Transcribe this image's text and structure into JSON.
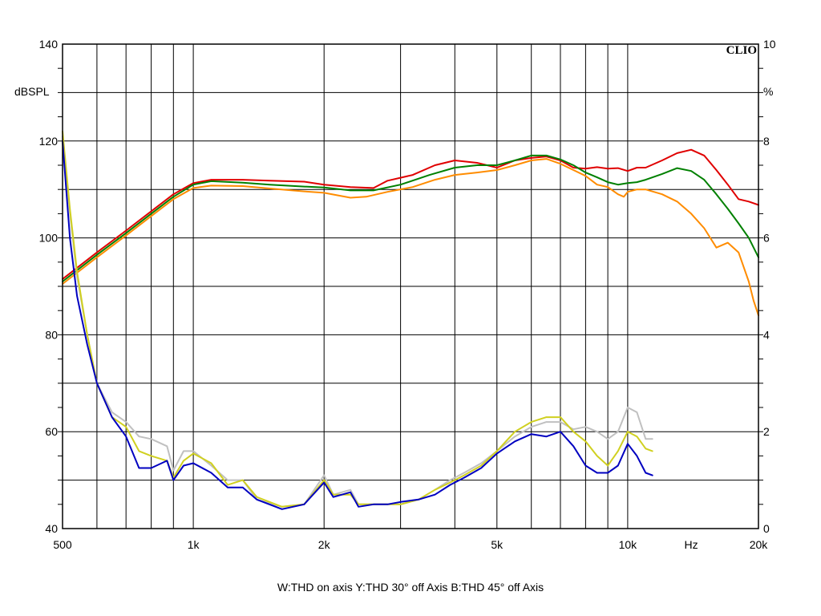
{
  "chart_data": {
    "type": "line",
    "brand": "CLIO",
    "x_scale": "log",
    "xlim": [
      500,
      20000
    ],
    "x_ticks": [
      {
        "value": 500,
        "label": "500"
      },
      {
        "value": 1000,
        "label": "1k"
      },
      {
        "value": 2000,
        "label": "2k"
      },
      {
        "value": 5000,
        "label": "5k"
      },
      {
        "value": 10000,
        "label": "10k"
      },
      {
        "value": 14000,
        "label": "Hz"
      },
      {
        "value": 20000,
        "label": "20k"
      }
    ],
    "x_gridlines": [
      500,
      600,
      700,
      800,
      900,
      1000,
      2000,
      3000,
      4000,
      5000,
      6000,
      7000,
      8000,
      9000,
      10000,
      20000
    ],
    "ylim_left": [
      40,
      140
    ],
    "ylabel_left": "dBSPL",
    "y_ticks_left": [
      "40",
      "60",
      "80",
      "100",
      "120",
      "140"
    ],
    "ylim_right": [
      0,
      10
    ],
    "ylabel_right": "%",
    "y_ticks_right": [
      "0",
      "2",
      "4",
      "6",
      "8",
      "10"
    ],
    "grid": true,
    "legend_text": "W:THD on axis   Y:THD 30° off Axis   B:THD 45° off Axis",
    "series": [
      {
        "axis": "left",
        "color": "#e00000",
        "points": [
          [
            500,
            91.5
          ],
          [
            600,
            97
          ],
          [
            700,
            101.5
          ],
          [
            800,
            105.5
          ],
          [
            900,
            109
          ],
          [
            1000,
            111.3
          ],
          [
            1100,
            112
          ],
          [
            1300,
            112
          ],
          [
            1500,
            111.8
          ],
          [
            1800,
            111.6
          ],
          [
            2000,
            111
          ],
          [
            2300,
            110.5
          ],
          [
            2600,
            110.3
          ],
          [
            2800,
            111.8
          ],
          [
            3200,
            113
          ],
          [
            3600,
            115
          ],
          [
            4000,
            116
          ],
          [
            4500,
            115.5
          ],
          [
            5000,
            114.5
          ],
          [
            5500,
            116
          ],
          [
            6000,
            116.5
          ],
          [
            6500,
            116.8
          ],
          [
            7000,
            116
          ],
          [
            7500,
            114.5
          ],
          [
            8000,
            114.3
          ],
          [
            8500,
            114.6
          ],
          [
            9000,
            114.3
          ],
          [
            9500,
            114.4
          ],
          [
            10000,
            113.8
          ],
          [
            10500,
            114.5
          ],
          [
            11000,
            114.5
          ],
          [
            12000,
            116
          ],
          [
            13000,
            117.5
          ],
          [
            14000,
            118.2
          ],
          [
            15000,
            117
          ],
          [
            16000,
            114
          ],
          [
            17000,
            111
          ],
          [
            18000,
            108
          ],
          [
            19000,
            107.5
          ],
          [
            20000,
            106.8
          ]
        ]
      },
      {
        "axis": "left",
        "color": "#008000",
        "points": [
          [
            500,
            91
          ],
          [
            600,
            96.5
          ],
          [
            700,
            101
          ],
          [
            800,
            105
          ],
          [
            900,
            108.5
          ],
          [
            1000,
            111
          ],
          [
            1100,
            111.7
          ],
          [
            1300,
            111.4
          ],
          [
            1500,
            111
          ],
          [
            1800,
            110.6
          ],
          [
            2000,
            110.4
          ],
          [
            2300,
            109.8
          ],
          [
            2600,
            109.8
          ],
          [
            3000,
            111
          ],
          [
            3500,
            113
          ],
          [
            4000,
            114.5
          ],
          [
            4500,
            115
          ],
          [
            5000,
            115
          ],
          [
            5500,
            116
          ],
          [
            6000,
            117
          ],
          [
            6500,
            117
          ],
          [
            7000,
            116.2
          ],
          [
            7500,
            115
          ],
          [
            8000,
            113.5
          ],
          [
            8500,
            112.5
          ],
          [
            9000,
            111.5
          ],
          [
            9500,
            111
          ],
          [
            10000,
            111.3
          ],
          [
            10500,
            111.5
          ],
          [
            11000,
            112
          ],
          [
            12000,
            113.2
          ],
          [
            13000,
            114.4
          ],
          [
            14000,
            113.8
          ],
          [
            15000,
            112
          ],
          [
            16000,
            109
          ],
          [
            17000,
            106
          ],
          [
            18000,
            103
          ],
          [
            19000,
            100
          ],
          [
            20000,
            96
          ]
        ]
      },
      {
        "axis": "left",
        "color": "#ff8c00",
        "points": [
          [
            500,
            90.5
          ],
          [
            600,
            96
          ],
          [
            700,
            100.5
          ],
          [
            800,
            104.5
          ],
          [
            900,
            108
          ],
          [
            1000,
            110.3
          ],
          [
            1100,
            110.8
          ],
          [
            1300,
            110.7
          ],
          [
            1500,
            110.2
          ],
          [
            1800,
            109.6
          ],
          [
            2000,
            109.3
          ],
          [
            2300,
            108.3
          ],
          [
            2500,
            108.5
          ],
          [
            2800,
            109.5
          ],
          [
            3200,
            110.5
          ],
          [
            3600,
            112
          ],
          [
            4000,
            113
          ],
          [
            4500,
            113.5
          ],
          [
            5000,
            114
          ],
          [
            5500,
            115
          ],
          [
            6000,
            116
          ],
          [
            6500,
            116.3
          ],
          [
            7000,
            115.3
          ],
          [
            7500,
            114
          ],
          [
            8000,
            112.8
          ],
          [
            8500,
            111
          ],
          [
            9000,
            110.5
          ],
          [
            9500,
            109
          ],
          [
            9800,
            108.5
          ],
          [
            10000,
            109.5
          ],
          [
            10500,
            110
          ],
          [
            11000,
            110
          ],
          [
            12000,
            109
          ],
          [
            13000,
            107.5
          ],
          [
            14000,
            105
          ],
          [
            15000,
            102
          ],
          [
            16000,
            98
          ],
          [
            17000,
            99
          ],
          [
            18000,
            97
          ],
          [
            19000,
            91
          ],
          [
            19500,
            87
          ],
          [
            20000,
            84
          ]
        ]
      },
      {
        "axis": "right",
        "color": "#c0c0c0",
        "points": [
          [
            500,
            8.1
          ],
          [
            520,
            6.5
          ],
          [
            540,
            5.2
          ],
          [
            570,
            4
          ],
          [
            600,
            3
          ],
          [
            650,
            2.4
          ],
          [
            700,
            2.2
          ],
          [
            750,
            1.9
          ],
          [
            800,
            1.85
          ],
          [
            870,
            1.7
          ],
          [
            900,
            1.2
          ],
          [
            950,
            1.6
          ],
          [
            1000,
            1.6
          ],
          [
            1100,
            1.3
          ],
          [
            1200,
            1.0
          ],
          [
            1300,
            1.0
          ],
          [
            1400,
            0.6
          ],
          [
            1600,
            0.45
          ],
          [
            1800,
            0.5
          ],
          [
            2000,
            1.1
          ],
          [
            2100,
            0.7
          ],
          [
            2300,
            0.8
          ],
          [
            2400,
            0.5
          ],
          [
            2600,
            0.5
          ],
          [
            2800,
            0.5
          ],
          [
            3000,
            0.5
          ],
          [
            3300,
            0.6
          ],
          [
            3600,
            0.8
          ],
          [
            3900,
            1.0
          ],
          [
            4200,
            1.15
          ],
          [
            4600,
            1.35
          ],
          [
            5000,
            1.6
          ],
          [
            5500,
            1.9
          ],
          [
            6000,
            2.1
          ],
          [
            6500,
            2.2
          ],
          [
            7000,
            2.2
          ],
          [
            7500,
            2.05
          ],
          [
            8000,
            2.1
          ],
          [
            8500,
            2.0
          ],
          [
            9000,
            1.85
          ],
          [
            9500,
            2.0
          ],
          [
            10000,
            2.5
          ],
          [
            10500,
            2.4
          ],
          [
            11000,
            1.85
          ],
          [
            11400,
            1.85
          ]
        ]
      },
      {
        "axis": "right",
        "color": "#d0d020",
        "points": [
          [
            500,
            8.2
          ],
          [
            520,
            6.6
          ],
          [
            540,
            5.3
          ],
          [
            570,
            4
          ],
          [
            600,
            3
          ],
          [
            650,
            2.3
          ],
          [
            700,
            2.1
          ],
          [
            750,
            1.6
          ],
          [
            800,
            1.5
          ],
          [
            870,
            1.4
          ],
          [
            900,
            1.05
          ],
          [
            950,
            1.4
          ],
          [
            1000,
            1.55
          ],
          [
            1100,
            1.35
          ],
          [
            1200,
            0.9
          ],
          [
            1300,
            1.0
          ],
          [
            1400,
            0.65
          ],
          [
            1600,
            0.45
          ],
          [
            1800,
            0.5
          ],
          [
            2000,
            1.0
          ],
          [
            2100,
            0.7
          ],
          [
            2300,
            0.7
          ],
          [
            2400,
            0.5
          ],
          [
            2600,
            0.5
          ],
          [
            2800,
            0.5
          ],
          [
            3000,
            0.5
          ],
          [
            3300,
            0.6
          ],
          [
            3600,
            0.8
          ],
          [
            3900,
            0.95
          ],
          [
            4200,
            1.1
          ],
          [
            4600,
            1.3
          ],
          [
            5000,
            1.6
          ],
          [
            5500,
            2.0
          ],
          [
            6000,
            2.2
          ],
          [
            6500,
            2.3
          ],
          [
            7000,
            2.3
          ],
          [
            7500,
            2.0
          ],
          [
            8000,
            1.8
          ],
          [
            8500,
            1.5
          ],
          [
            9000,
            1.3
          ],
          [
            9500,
            1.6
          ],
          [
            10000,
            2.0
          ],
          [
            10500,
            1.9
          ],
          [
            11000,
            1.65
          ],
          [
            11400,
            1.6
          ]
        ]
      },
      {
        "axis": "right",
        "color": "#0000c0",
        "points": [
          [
            500,
            8.0
          ],
          [
            520,
            6.0
          ],
          [
            540,
            4.8
          ],
          [
            570,
            3.8
          ],
          [
            600,
            3
          ],
          [
            650,
            2.3
          ],
          [
            700,
            1.9
          ],
          [
            750,
            1.25
          ],
          [
            800,
            1.25
          ],
          [
            870,
            1.4
          ],
          [
            900,
            1.0
          ],
          [
            950,
            1.3
          ],
          [
            1000,
            1.35
          ],
          [
            1100,
            1.15
          ],
          [
            1200,
            0.85
          ],
          [
            1300,
            0.85
          ],
          [
            1400,
            0.6
          ],
          [
            1600,
            0.4
          ],
          [
            1800,
            0.5
          ],
          [
            2000,
            0.95
          ],
          [
            2100,
            0.65
          ],
          [
            2300,
            0.75
          ],
          [
            2400,
            0.45
          ],
          [
            2600,
            0.5
          ],
          [
            2800,
            0.5
          ],
          [
            3000,
            0.55
          ],
          [
            3300,
            0.6
          ],
          [
            3600,
            0.7
          ],
          [
            3900,
            0.9
          ],
          [
            4200,
            1.05
          ],
          [
            4600,
            1.25
          ],
          [
            5000,
            1.55
          ],
          [
            5500,
            1.8
          ],
          [
            6000,
            1.95
          ],
          [
            6500,
            1.9
          ],
          [
            7000,
            2.0
          ],
          [
            7500,
            1.7
          ],
          [
            8000,
            1.3
          ],
          [
            8500,
            1.15
          ],
          [
            9000,
            1.15
          ],
          [
            9500,
            1.3
          ],
          [
            10000,
            1.75
          ],
          [
            10500,
            1.5
          ],
          [
            11000,
            1.15
          ],
          [
            11400,
            1.1
          ]
        ]
      }
    ]
  }
}
